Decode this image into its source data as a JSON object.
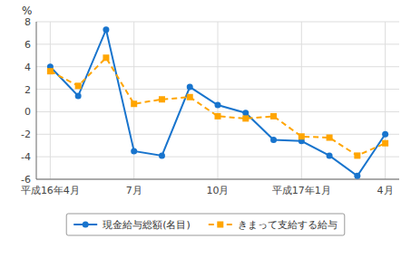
{
  "chart_data": {
    "type": "line",
    "y_label": "%",
    "categories": [
      "平成16年4月",
      null,
      null,
      "7月",
      null,
      null,
      "10月",
      null,
      null,
      "平成17年1月",
      null,
      null,
      "4月"
    ],
    "series": [
      {
        "name": "現金給与総額(名目)",
        "color": "#1874cd",
        "marker": "circle",
        "line_style": "solid",
        "values": [
          4.0,
          1.4,
          7.3,
          -3.5,
          -3.9,
          2.2,
          0.6,
          -0.1,
          -2.5,
          -2.6,
          -3.9,
          -5.7,
          -2.0
        ]
      },
      {
        "name": "きまって支給する給与",
        "color": "#ffa500",
        "marker": "square",
        "line_style": "dashed",
        "values": [
          3.6,
          2.3,
          4.8,
          0.7,
          1.1,
          1.3,
          -0.4,
          -0.6,
          -0.4,
          -2.2,
          -2.3,
          -3.9,
          -2.8
        ]
      }
    ],
    "ylim": [
      -6,
      8
    ],
    "yticks": [
      -6,
      -4,
      -2,
      0,
      2,
      4,
      6,
      8
    ],
    "grid": true,
    "legend": "bottom"
  }
}
